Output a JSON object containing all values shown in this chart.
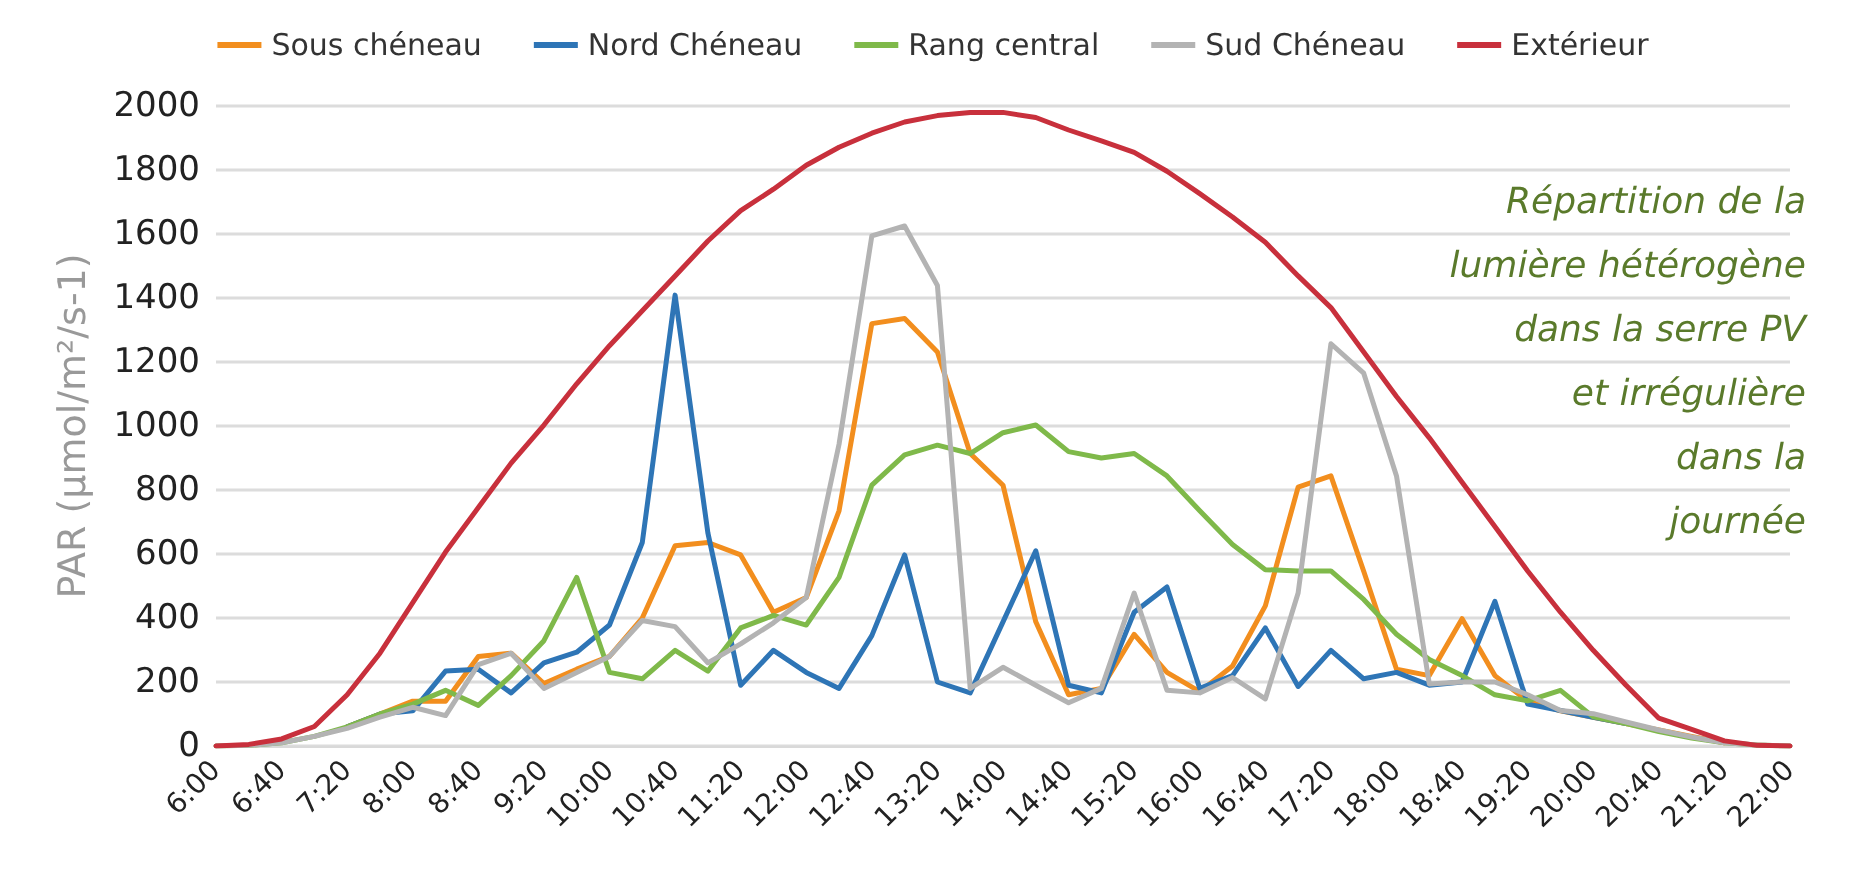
{
  "chart_data": {
    "type": "line",
    "ylabel": "PAR (µmol/m²/s-1)",
    "categories": [
      "6:00",
      null,
      "6:40",
      null,
      "7:20",
      null,
      "8:00",
      null,
      "8:40",
      null,
      "9:20",
      null,
      "10:00",
      null,
      "10:40",
      null,
      "11:20",
      null,
      "12:00",
      null,
      "12:40",
      null,
      "13:20",
      null,
      "14:00",
      null,
      "14:40",
      null,
      "15:20",
      null,
      "16:00",
      null,
      "16:40",
      null,
      "17:20",
      null,
      "18:00",
      null,
      "18:40",
      null,
      "19:20",
      null,
      "20:00",
      null,
      "20:40",
      null,
      "21:20",
      null,
      "22:00"
    ],
    "series": [
      {
        "name": "Sous chéneau",
        "color": "#f28e1e",
        "values": [
          null,
          null,
          null,
          null,
          60,
          100,
          140,
          140,
          280,
          290,
          195,
          240,
          280,
          400,
          626,
          636,
          597,
          418,
          464,
          735,
          1320,
          1336,
          1231,
          914,
          815,
          388,
          160,
          180,
          349,
          230,
          170,
          250,
          438,
          809,
          844,
          546,
          240,
          220,
          398,
          220,
          140,
          110,
          90,
          70,
          50,
          30,
          10,
          null,
          null
        ]
      },
      {
        "name": "Nord Chéneau",
        "color": "#2e75b6",
        "values": [
          null,
          null,
          null,
          null,
          60,
          100,
          110,
          234,
          240,
          166,
          260,
          293,
          378,
          636,
          1409,
          666,
          190,
          299,
          230,
          180,
          345,
          597,
          200,
          166,
          388,
          610,
          190,
          166,
          418,
          497,
          180,
          220,
          369,
          186,
          299,
          210,
          230,
          190,
          200,
          452,
          131,
          111,
          90,
          70,
          null,
          null,
          null,
          null,
          null
        ]
      },
      {
        "name": "Rang central",
        "color": "#7fb94a",
        "values": [
          0,
          2,
          10,
          30,
          60,
          100,
          131,
          174,
          127,
          220,
          329,
          527,
          230,
          210,
          299,
          234,
          369,
          408,
          378,
          527,
          815,
          910,
          940,
          914,
          979,
          1003,
          920,
          900,
          914,
          844,
          735,
          630,
          551,
          547,
          547,
          458,
          349,
          270,
          220,
          160,
          141,
          174,
          91,
          70,
          45,
          25,
          10,
          3,
          0
        ]
      },
      {
        "name": "Sud Chéneau",
        "color": "#b3b3b3",
        "values": [
          0,
          2,
          10,
          30,
          55,
          90,
          121,
          95,
          254,
          290,
          180,
          230,
          280,
          392,
          373,
          260,
          319,
          385,
          464,
          943,
          1594,
          1625,
          1439,
          180,
          246,
          190,
          135,
          180,
          478,
          174,
          166,
          214,
          147,
          478,
          1257,
          1165,
          844,
          194,
          200,
          200,
          160,
          111,
          101,
          75,
          50,
          28,
          10,
          3,
          0
        ]
      },
      {
        "name": "Extérieur",
        "color": "#c8303c",
        "values": [
          0,
          5,
          22,
          61,
          160,
          290,
          448,
          606,
          745,
          884,
          1003,
          1132,
          1251,
          1360,
          1469,
          1578,
          1673,
          1740,
          1815,
          1871,
          1915,
          1950,
          1970,
          1980,
          1980,
          1964,
          1925,
          1891,
          1855,
          1796,
          1726,
          1653,
          1574,
          1469,
          1370,
          1231,
          1092,
          963,
          824,
          686,
          547,
          418,
          299,
          190,
          87,
          52,
          16,
          2,
          0
        ]
      }
    ],
    "ylim": [
      0,
      2000
    ],
    "yticks": [
      0,
      200,
      400,
      600,
      800,
      1000,
      1200,
      1400,
      1600,
      1800,
      2000
    ],
    "grid": "y",
    "legend": "top",
    "marker": "none",
    "line_style": "solid",
    "annotations": [
      "Répartition de la\nlumière hétérogène\ndans la serre PV\net irrégulière\ndans la\njournée"
    ]
  }
}
